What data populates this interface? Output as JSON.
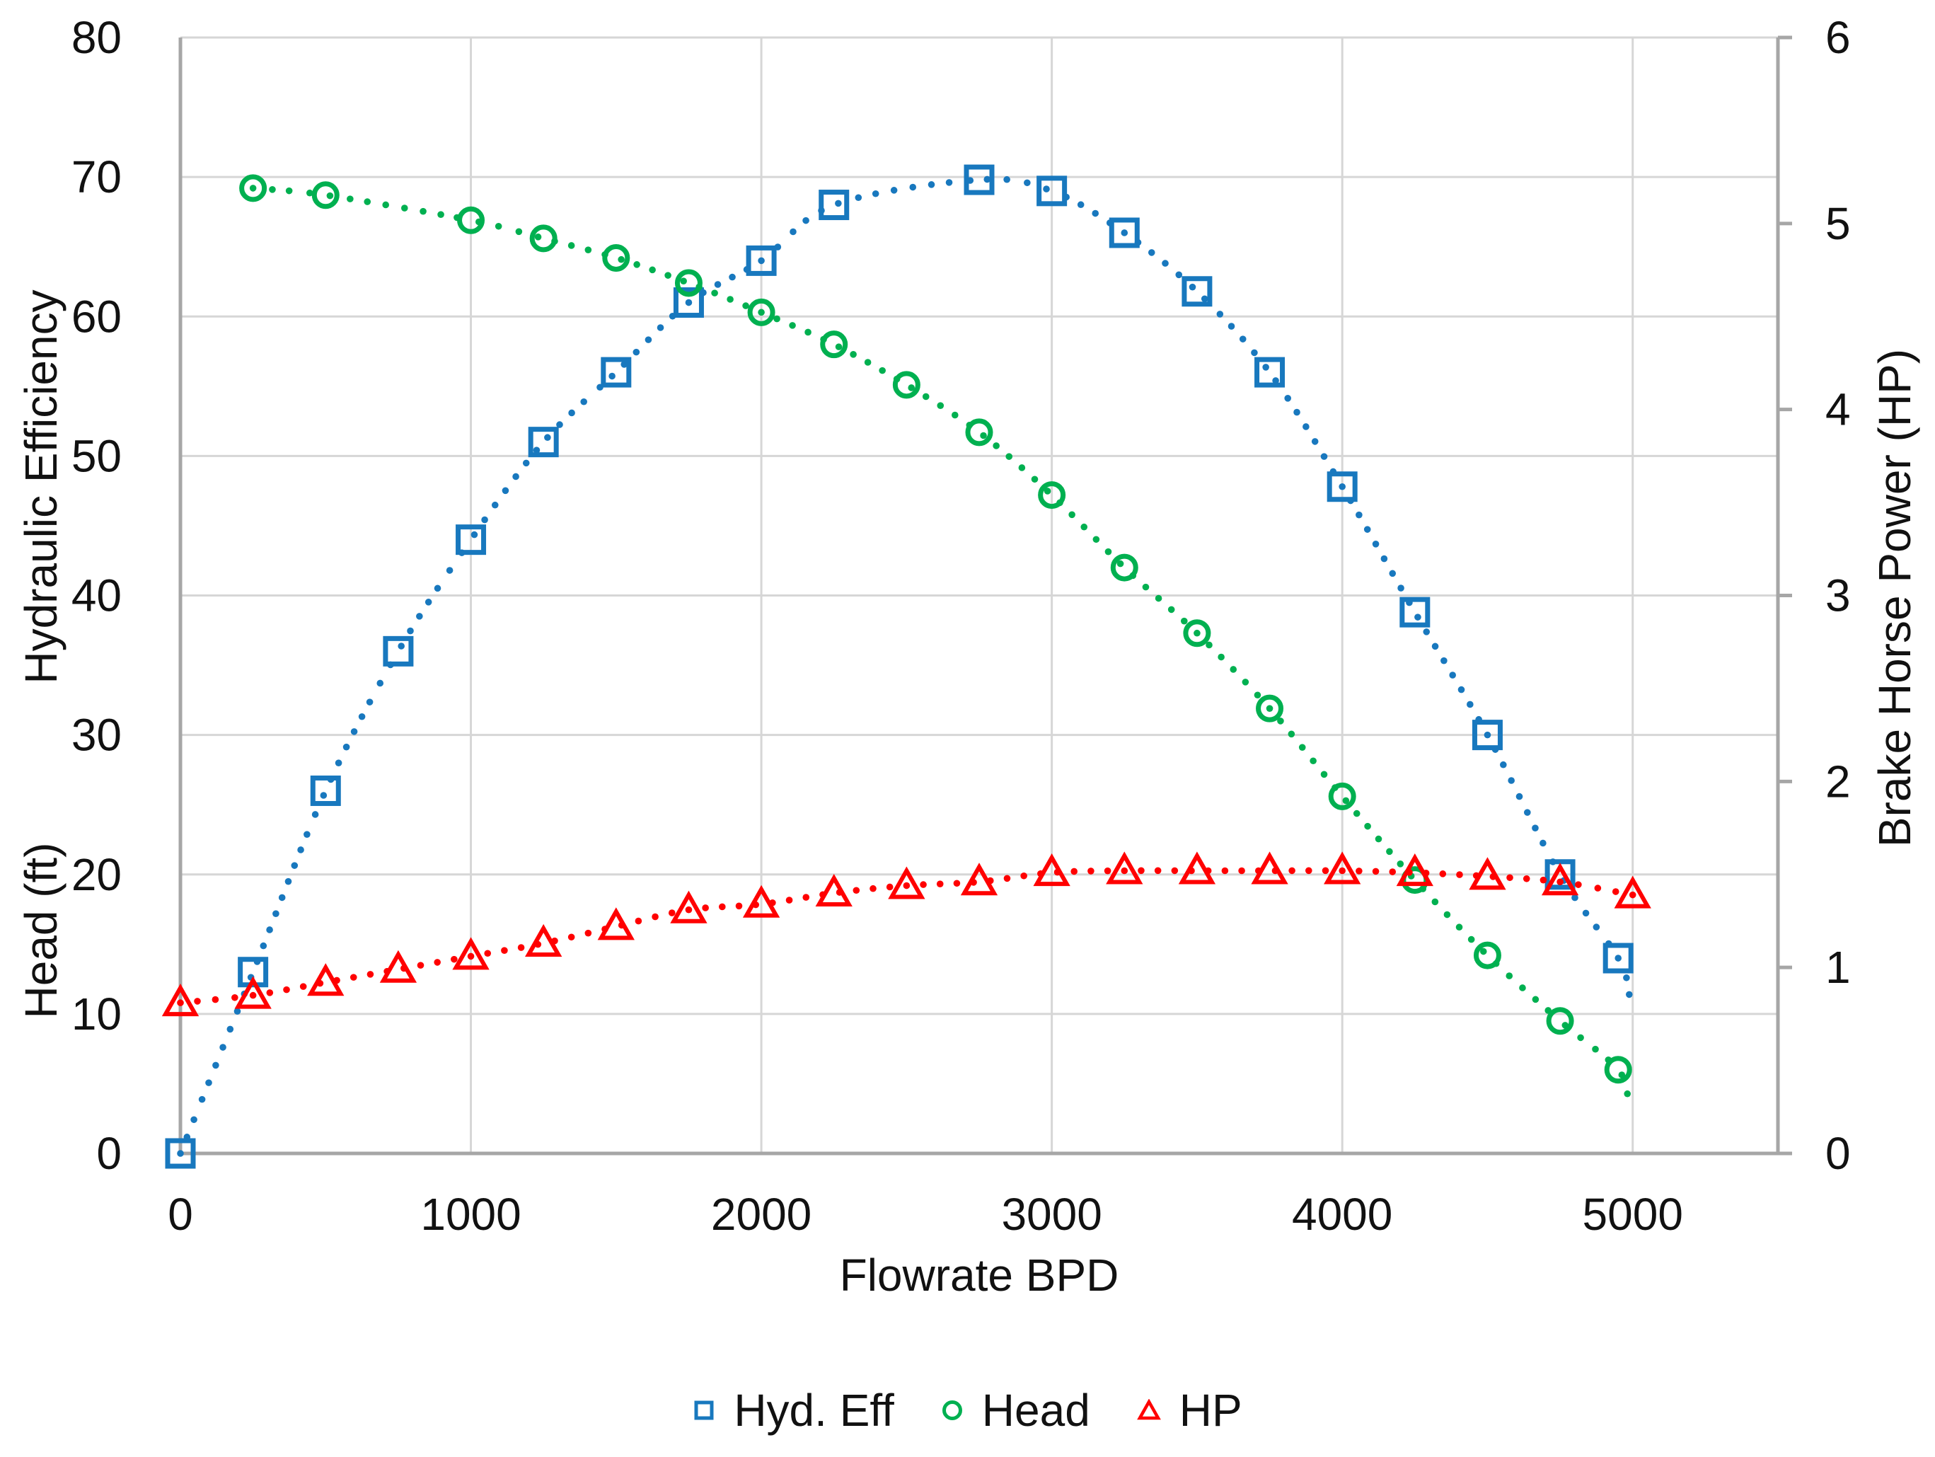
{
  "chart_data": {
    "type": "scatter",
    "title": "",
    "x_axis": {
      "label": "Flowrate BPD",
      "min": 0,
      "max": 5500,
      "ticks": [
        0,
        1000,
        2000,
        3000,
        4000,
        5000
      ]
    },
    "y_axis_left": {
      "titles": [
        "Hydraulic Efficiency",
        "Head (ft)"
      ],
      "min": 0,
      "max": 80,
      "ticks": [
        0,
        10,
        20,
        30,
        40,
        50,
        60,
        70,
        80
      ]
    },
    "y_axis_right": {
      "title": "Brake Horse Power (HP)",
      "min": 0,
      "max": 6,
      "ticks": [
        0,
        1,
        2,
        3,
        4,
        5,
        6
      ]
    },
    "grid": true,
    "legend_position": "bottom",
    "colors": {
      "grid": "#D6D6D6",
      "axis": "#A6A6A6",
      "text": "#111111",
      "hyd_eff": "#1878BE",
      "head": "#00B050",
      "hp": "#FF0000"
    },
    "series": [
      {
        "name": "Hyd. Eff",
        "axis": "left",
        "marker": "square",
        "color": "#1878BE",
        "trendline": "dotted",
        "x": [
          0,
          250,
          500,
          750,
          1000,
          1250,
          1500,
          1750,
          2000,
          2250,
          2750,
          3000,
          3250,
          3500,
          3750,
          4000,
          4250,
          4500,
          4750,
          4950
        ],
        "y": [
          0,
          13,
          26,
          36,
          44,
          51,
          56,
          61,
          64,
          68,
          69.8,
          69,
          66,
          61.8,
          56,
          47.8,
          38.8,
          30,
          20,
          14
        ],
        "trend_tail": [
          [
            4990,
            11.2
          ]
        ]
      },
      {
        "name": "Head",
        "axis": "left",
        "marker": "circle",
        "color": "#00B050",
        "trendline": "dotted",
        "x": [
          250,
          500,
          1000,
          1250,
          1500,
          1750,
          2000,
          2250,
          2500,
          2750,
          3000,
          3250,
          3500,
          3750,
          4000,
          4250,
          4500,
          4750,
          4950
        ],
        "y": [
          69.2,
          68.7,
          66.9,
          65.6,
          64.2,
          62.4,
          60.3,
          58,
          55.1,
          51.7,
          47.2,
          42,
          37.3,
          31.9,
          25.6,
          19.6,
          14.2,
          9.5,
          6
        ],
        "trend_tail": [
          [
            4985,
            3.6
          ]
        ]
      },
      {
        "name": "HP",
        "axis": "right",
        "marker": "triangle",
        "color": "#FF0000",
        "trendline": "dotted",
        "x": [
          0,
          250,
          500,
          750,
          1000,
          1250,
          1500,
          1750,
          2000,
          2250,
          2500,
          2750,
          3000,
          3250,
          3500,
          3750,
          4000,
          4250,
          4500,
          4750,
          5000
        ],
        "y": [
          0.81,
          0.85,
          0.92,
          0.99,
          1.06,
          1.13,
          1.22,
          1.31,
          1.34,
          1.4,
          1.44,
          1.46,
          1.51,
          1.52,
          1.52,
          1.52,
          1.52,
          1.51,
          1.49,
          1.46,
          1.39
        ],
        "trend_tail": []
      }
    ]
  }
}
